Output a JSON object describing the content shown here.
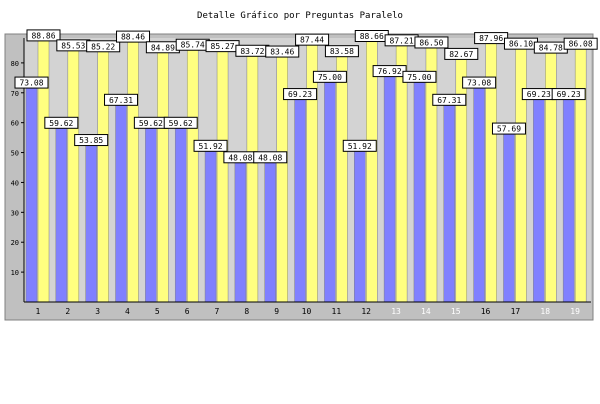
{
  "chart_data": {
    "type": "bar",
    "title": "Detalle Gráfico por Preguntas Paralelo",
    "xlabel": "",
    "ylabel": "",
    "ylim": [
      0,
      90
    ],
    "y_ticks": [
      10,
      20,
      30,
      40,
      50,
      60,
      70,
      80
    ],
    "grid": false,
    "categories": [
      "1",
      "2",
      "3",
      "4",
      "5",
      "6",
      "7",
      "8",
      "9",
      "10",
      "11",
      "12",
      "13",
      "14",
      "15",
      "16",
      "17",
      "18",
      "19"
    ],
    "series": [
      {
        "color": "#8080ff",
        "values": [
          73.08,
          59.62,
          53.85,
          67.31,
          59.62,
          59.62,
          51.92,
          48.08,
          48.08,
          69.23,
          75.0,
          51.92,
          76.92,
          75.0,
          67.31,
          73.08,
          57.69,
          69.23,
          69.23
        ]
      },
      {
        "color": "#ffff80",
        "values": [
          88.86,
          85.53,
          85.22,
          88.46,
          84.89,
          85.74,
          85.27,
          83.72,
          83.46,
          87.44,
          83.58,
          88.66,
          87.21,
          86.5,
          82.67,
          87.96,
          86.1,
          84.78,
          86.08
        ]
      }
    ],
    "colors": {
      "plot_background": "#d3d3d3",
      "category_label_normal": "#000000",
      "category_label_faded": "#ffffff"
    },
    "faded_categories": [
      "13",
      "14",
      "15",
      "18",
      "19"
    ]
  }
}
